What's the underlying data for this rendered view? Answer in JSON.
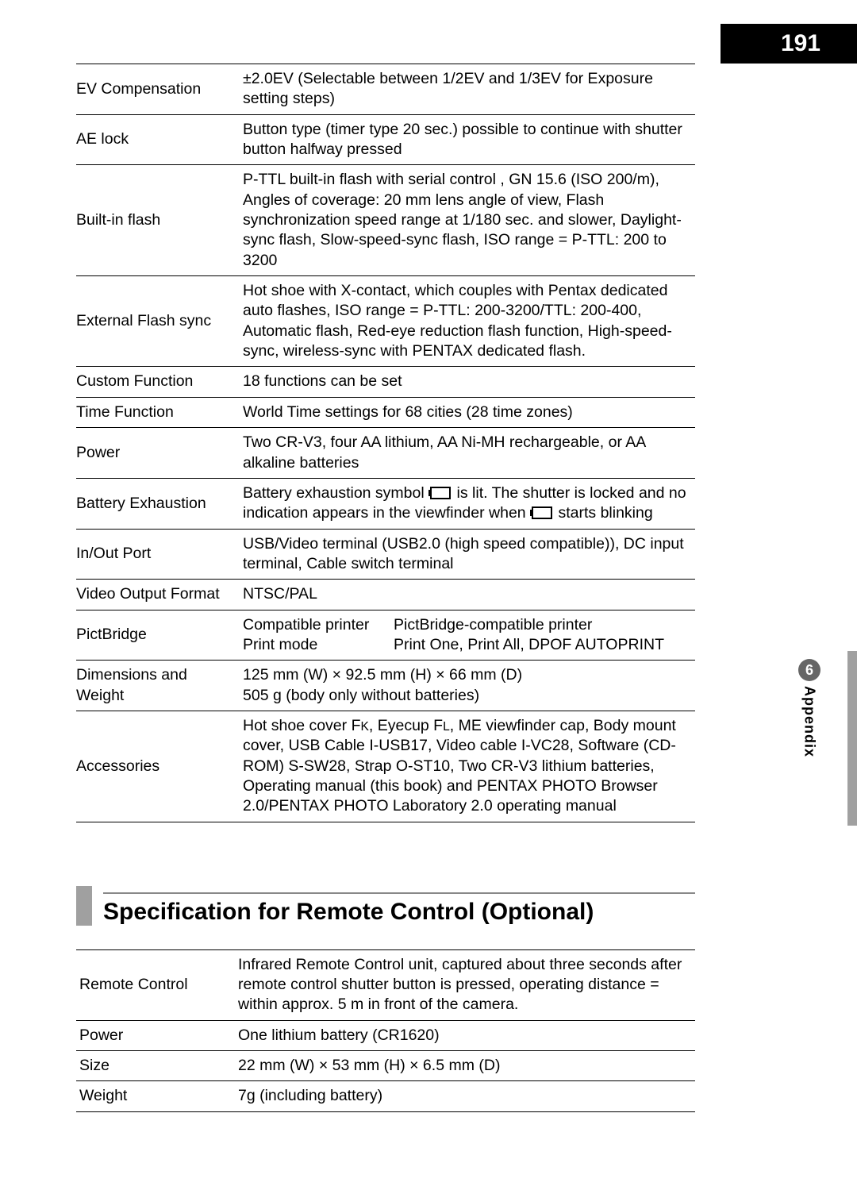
{
  "page_number": "191",
  "appendix": {
    "number": "6",
    "label": "Appendix"
  },
  "colors": {
    "black": "#000000",
    "gray_bar": "#a0a0a0",
    "circle": "#666666",
    "text": "#000000",
    "bg": "#ffffff"
  },
  "typography": {
    "body_fontsize_pt": 14,
    "heading_fontsize_pt": 22,
    "page_num_fontsize_pt": 22
  },
  "main_specs": [
    {
      "label": "EV Compensation",
      "value": "±2.0EV (Selectable between 1/2EV and 1/3EV for Exposure setting steps)"
    },
    {
      "label": "AE lock",
      "value": "Button type (timer type 20 sec.) possible to continue with shutter button halfway pressed"
    },
    {
      "label": "Built-in flash",
      "value": "P-TTL built-in flash with serial control , GN 15.6 (ISO 200/m), Angles of coverage: 20 mm lens angle of view, Flash synchronization speed range at 1/180 sec. and slower, Daylight-sync flash, Slow-speed-sync flash, ISO range = P-TTL: 200 to 3200"
    },
    {
      "label": "External Flash sync",
      "value": "Hot shoe with X-contact, which couples with Pentax dedicated auto flashes, ISO range = P-TTL: 200-3200/TTL: 200-400, Automatic flash, Red-eye reduction flash function, High-speed-sync, wireless-sync with PENTAX dedicated flash."
    },
    {
      "label": "Custom Function",
      "value": "18 functions can be set"
    },
    {
      "label": "Time Function",
      "value": "World Time settings for 68 cities (28 time zones)"
    },
    {
      "label": "Power",
      "value": "Two CR-V3, four AA lithium, AA Ni-MH rechargeable, or AA alkaline batteries"
    },
    {
      "label": "Battery Exhaustion",
      "value_html": true,
      "value": "Battery exhaustion symbol {BATT} is lit. The shutter is locked and no indication appears in the viewfinder when {BATT} starts blinking"
    },
    {
      "label": "In/Out Port",
      "value": "USB/Video terminal (USB2.0 (high speed compatible)), DC input terminal, Cable switch terminal"
    },
    {
      "label": "Video Output Format",
      "value": "NTSC/PAL"
    },
    {
      "label": "PictBridge",
      "subrows": [
        {
          "left": "Compatible printer",
          "right": "PictBridge-compatible printer"
        },
        {
          "left": "Print mode",
          "right": "Print One, Print All, DPOF AUTOPRINT"
        }
      ]
    },
    {
      "label": "Dimensions and Weight",
      "value": "125 mm (W) × 92.5 mm (H) × 66 mm (D)\n505 g (body only without batteries)"
    },
    {
      "label": "Accessories",
      "value_html": true,
      "value": "Hot shoe cover F{K}, Eyecup F{L}, ME viewfinder cap, Body mount cover, USB Cable I-USB17, Video cable I-VC28, Software (CD-ROM) S-SW28, Strap O-ST10, Two CR-V3 lithium batteries, Operating manual (this book) and PENTAX PHOTO Browser 2.0/PENTAX PHOTO Laboratory 2.0 operating manual"
    }
  ],
  "section_heading": "Specification for Remote Control (Optional)",
  "remote_specs": [
    {
      "label": "Remote Control",
      "value": "Infrared Remote Control unit, captured about three seconds after remote control shutter button is pressed, operating distance = within approx. 5 m in front of the camera."
    },
    {
      "label": "Power",
      "value": "One lithium battery (CR1620)"
    },
    {
      "label": "Size",
      "value": "22 mm (W) × 53 mm (H) × 6.5 mm (D)"
    },
    {
      "label": "Weight",
      "value": "7g (including battery)"
    }
  ]
}
